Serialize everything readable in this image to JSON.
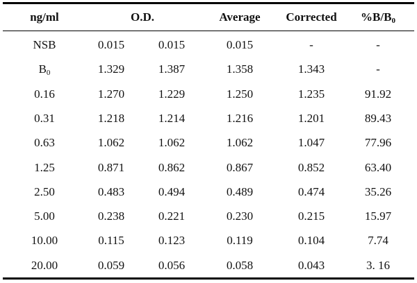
{
  "table": {
    "headers": {
      "concentration": "ng/ml",
      "od": "O.D.",
      "average": "Average",
      "corrected": "Corrected",
      "percent_b_b0_main": "%B/B",
      "percent_b_b0_sub": "0"
    },
    "rows": [
      {
        "label_main": "NSB",
        "label_sub": "",
        "od1": "0.015",
        "od2": "0.015",
        "average": "0.015",
        "corrected": "-",
        "percent": "-"
      },
      {
        "label_main": "B",
        "label_sub": "0",
        "od1": "1.329",
        "od2": "1.387",
        "average": "1.358",
        "corrected": "1.343",
        "percent": "-"
      },
      {
        "label_main": "0.16",
        "label_sub": "",
        "od1": "1.270",
        "od2": "1.229",
        "average": "1.250",
        "corrected": "1.235",
        "percent": "91.92"
      },
      {
        "label_main": "0.31",
        "label_sub": "",
        "od1": "1.218",
        "od2": "1.214",
        "average": "1.216",
        "corrected": "1.201",
        "percent": "89.43"
      },
      {
        "label_main": "0.63",
        "label_sub": "",
        "od1": "1.062",
        "od2": "1.062",
        "average": "1.062",
        "corrected": "1.047",
        "percent": "77.96"
      },
      {
        "label_main": "1.25",
        "label_sub": "",
        "od1": "0.871",
        "od2": "0.862",
        "average": "0.867",
        "corrected": "0.852",
        "percent": "63.40"
      },
      {
        "label_main": "2.50",
        "label_sub": "",
        "od1": "0.483",
        "od2": "0.494",
        "average": "0.489",
        "corrected": "0.474",
        "percent": "35.26"
      },
      {
        "label_main": "5.00",
        "label_sub": "",
        "od1": "0.238",
        "od2": "0.221",
        "average": "0.230",
        "corrected": "0.215",
        "percent": "15.97"
      },
      {
        "label_main": "10.00",
        "label_sub": "",
        "od1": "0.115",
        "od2": "0.123",
        "average": "0.119",
        "corrected": "0.104",
        "percent": "7.74"
      },
      {
        "label_main": "20.00",
        "label_sub": "",
        "od1": "0.059",
        "od2": "0.056",
        "average": "0.058",
        "corrected": "0.043",
        "percent": "3. 16"
      }
    ]
  }
}
